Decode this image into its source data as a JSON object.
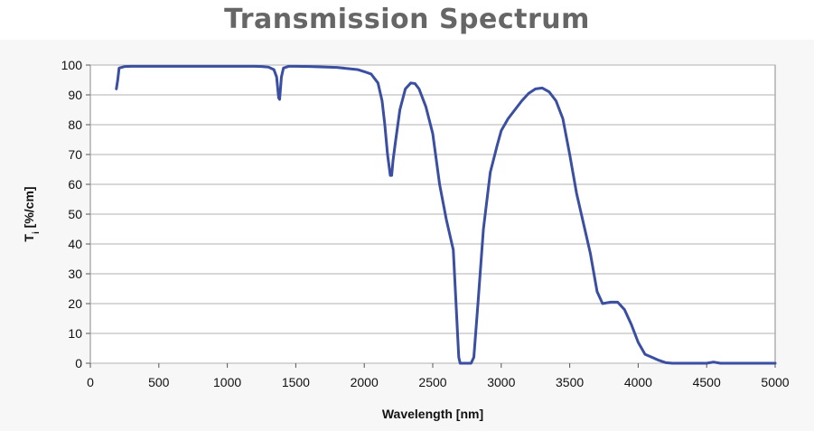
{
  "chart_data": {
    "type": "line",
    "title": "Transmission Spectrum",
    "xlabel": "Wavelength [nm]",
    "ylabel_main": "T",
    "ylabel_sub": "i",
    "ylabel_rest": " [%/cm]",
    "xlim": [
      0,
      5000
    ],
    "ylim": [
      0,
      100
    ],
    "xticks": [
      0,
      500,
      1000,
      1500,
      2000,
      2500,
      3000,
      3500,
      4000,
      4500,
      5000
    ],
    "yticks": [
      0,
      10,
      20,
      30,
      40,
      50,
      60,
      70,
      80,
      90,
      100
    ],
    "grid": true,
    "line_color": "#3a4ea2",
    "series": [
      {
        "x": [
          190,
          200,
          210,
          250,
          300,
          400,
          500,
          700,
          1000,
          1200,
          1250,
          1300,
          1340,
          1360,
          1375,
          1382,
          1395,
          1410,
          1450,
          1500,
          1600,
          1800,
          1950,
          2000,
          2050,
          2100,
          2130,
          2150,
          2170,
          2190,
          2200,
          2210,
          2230,
          2260,
          2300,
          2340,
          2370,
          2400,
          2450,
          2500,
          2550,
          2600,
          2650,
          2670,
          2690,
          2700,
          2720,
          2750,
          2780,
          2800,
          2830,
          2870,
          2920,
          2970,
          3000,
          3050,
          3100,
          3150,
          3200,
          3250,
          3300,
          3350,
          3400,
          3450,
          3500,
          3550,
          3600,
          3650,
          3700,
          3740,
          3800,
          3850,
          3900,
          3950,
          4000,
          4050,
          4100,
          4150,
          4200,
          4250,
          4300,
          4400,
          4500,
          4550,
          4600,
          4700,
          4800,
          4900,
          5000
        ],
        "y": [
          92,
          95,
          99,
          99.5,
          99.6,
          99.6,
          99.6,
          99.6,
          99.6,
          99.6,
          99.5,
          99.3,
          98.5,
          96,
          89,
          88.5,
          96,
          99,
          99.6,
          99.6,
          99.5,
          99.2,
          98.5,
          97.8,
          97,
          94,
          88,
          80,
          70,
          63,
          63,
          68,
          75,
          85,
          92,
          94,
          93.8,
          92,
          86,
          77,
          60,
          48,
          38,
          20,
          2,
          0,
          0,
          0,
          0,
          2,
          20,
          45,
          64,
          73,
          78,
          82,
          85,
          88,
          90.5,
          92,
          92.3,
          91,
          88,
          82,
          70,
          57,
          47,
          37,
          24,
          20,
          20.5,
          20.5,
          18,
          13,
          7,
          3,
          2,
          1,
          0.2,
          0,
          0,
          0,
          0,
          0.4,
          0,
          0,
          0,
          0,
          0
        ]
      }
    ]
  }
}
